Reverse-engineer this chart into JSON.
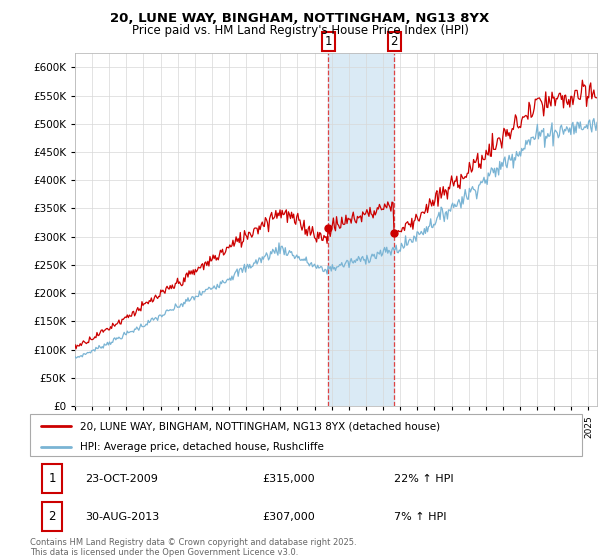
{
  "title1": "20, LUNE WAY, BINGHAM, NOTTINGHAM, NG13 8YX",
  "title2": "Price paid vs. HM Land Registry's House Price Index (HPI)",
  "legend1": "20, LUNE WAY, BINGHAM, NOTTINGHAM, NG13 8YX (detached house)",
  "legend2": "HPI: Average price, detached house, Rushcliffe",
  "annotation1_date": "23-OCT-2009",
  "annotation1_price": "£315,000",
  "annotation1_hpi": "22% ↑ HPI",
  "annotation2_date": "30-AUG-2013",
  "annotation2_price": "£307,000",
  "annotation2_hpi": "7% ↑ HPI",
  "footer": "Contains HM Land Registry data © Crown copyright and database right 2025.\nThis data is licensed under the Open Government Licence v3.0.",
  "sale1_year": 2009.81,
  "sale1_price": 315000,
  "sale2_year": 2013.66,
  "sale2_price": 307000,
  "highlight_color": "#daeaf5",
  "line1_color": "#cc0000",
  "line2_color": "#7ab4d4",
  "marker_color": "#cc0000",
  "ylim_max": 625000,
  "ylim_min": 0,
  "xmin": 1995,
  "xmax": 2025.5
}
